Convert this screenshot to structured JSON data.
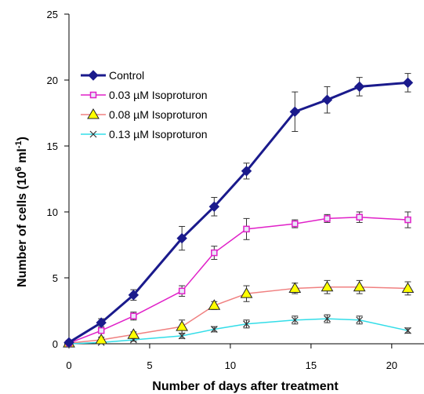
{
  "chart_data": {
    "type": "line",
    "title": "",
    "xlabel": "Number of days after treatment",
    "ylabel_main": "Number of cells (10",
    "ylabel_sup1": "6",
    "ylabel_mid": " ml",
    "ylabel_sup2": "-1",
    "ylabel_end": ")",
    "xlim": [
      0,
      22
    ],
    "ylim": [
      0,
      25
    ],
    "xticks": [
      0,
      5,
      10,
      15,
      20
    ],
    "yticks": [
      0,
      5,
      10,
      15,
      20,
      25
    ],
    "xtick_labels": [
      "0",
      "5",
      "10",
      "15",
      "20"
    ],
    "ytick_labels": [
      "0",
      "5",
      "10",
      "15",
      "20",
      "25"
    ],
    "grid": false,
    "legend_position": "upper-left",
    "x": [
      0,
      2,
      4,
      7,
      9,
      11,
      14,
      16,
      18,
      21
    ],
    "series": [
      {
        "name": "Control",
        "color": "#1a1a8c",
        "marker": "diamond",
        "values": [
          0.1,
          1.6,
          3.7,
          8.0,
          10.4,
          13.1,
          17.6,
          18.5,
          19.5,
          19.8
        ],
        "errors": [
          0.1,
          0.3,
          0.4,
          0.9,
          0.7,
          0.6,
          1.5,
          1.0,
          0.7,
          0.7
        ]
      },
      {
        "name": "0.03 µM Isoproturon",
        "color": "#e020c8",
        "marker": "square",
        "values": [
          0.05,
          1.0,
          2.1,
          4.0,
          6.9,
          8.7,
          9.1,
          9.5,
          9.6,
          9.4
        ],
        "errors": [
          0.05,
          0.2,
          0.3,
          0.4,
          0.5,
          0.8,
          0.3,
          0.3,
          0.4,
          0.6
        ]
      },
      {
        "name": "0.08 µM Isoproturon",
        "color": "#f08080",
        "marker": "triangle",
        "values": [
          0.05,
          0.3,
          0.7,
          1.3,
          2.9,
          3.8,
          4.2,
          4.3,
          4.3,
          4.2
        ],
        "errors": [
          0.05,
          0.2,
          0.2,
          0.5,
          0.3,
          0.6,
          0.4,
          0.5,
          0.5,
          0.5
        ]
      },
      {
        "name": "0.13 µM Isoproturon",
        "color": "#33dde8",
        "marker": "x",
        "values": [
          0.0,
          0.1,
          0.3,
          0.6,
          1.1,
          1.5,
          1.8,
          1.9,
          1.8,
          1.0
        ],
        "errors": [
          0.0,
          0.1,
          0.1,
          0.2,
          0.2,
          0.3,
          0.3,
          0.3,
          0.3,
          0.2
        ]
      }
    ]
  }
}
